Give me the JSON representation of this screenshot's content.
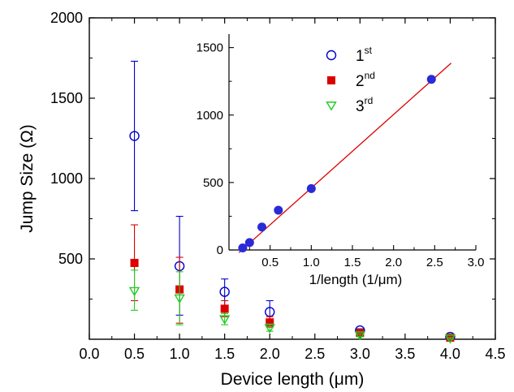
{
  "chart_data": [
    {
      "type": "scatter",
      "xlabel": "Device length (μm)",
      "ylabel": "Jump Size (Ω)",
      "xlim": [
        0,
        4.5
      ],
      "ylim": [
        0,
        2000
      ],
      "xticks": [
        "0.0",
        "0.5",
        "1.0",
        "1.5",
        "2.0",
        "2.5",
        "3.0",
        "3.5",
        "4.0",
        "4.5"
      ],
      "yticks": [
        "500",
        "1000",
        "1500",
        "2000"
      ],
      "grid": false,
      "series": [
        {
          "name": "1st",
          "marker": "open-circle",
          "color": "#0000cc",
          "points": [
            {
              "x": 0.5,
              "y": 1265,
              "err_low": 800,
              "err_high": 1730
            },
            {
              "x": 1.0,
              "y": 455,
              "err_low": 150,
              "err_high": 765
            },
            {
              "x": 1.5,
              "y": 295,
              "err_low": 210,
              "err_high": 375
            },
            {
              "x": 2.0,
              "y": 170,
              "err_low": 100,
              "err_high": 240
            },
            {
              "x": 3.0,
              "y": 55,
              "err_low": 45,
              "err_high": 65
            },
            {
              "x": 4.0,
              "y": 15,
              "err_low": 10,
              "err_high": 20
            }
          ]
        },
        {
          "name": "2nd",
          "marker": "filled-square",
          "color": "#dd0000",
          "points": [
            {
              "x": 0.5,
              "y": 475,
              "err_low": 240,
              "err_high": 712
            },
            {
              "x": 1.0,
              "y": 310,
              "err_low": 100,
              "err_high": 510
            },
            {
              "x": 1.5,
              "y": 190,
              "err_low": 140,
              "err_high": 240
            },
            {
              "x": 2.0,
              "y": 105,
              "err_low": 75,
              "err_high": 140
            },
            {
              "x": 3.0,
              "y": 40,
              "err_low": 30,
              "err_high": 50
            },
            {
              "x": 4.0,
              "y": 10,
              "err_low": 5,
              "err_high": 15
            }
          ]
        },
        {
          "name": "3rd",
          "marker": "open-triangle-down",
          "color": "#22cc22",
          "points": [
            {
              "x": 0.5,
              "y": 300,
              "err_low": 180,
              "err_high": 430
            },
            {
              "x": 1.0,
              "y": 255,
              "err_low": 90,
              "err_high": 420
            },
            {
              "x": 1.5,
              "y": 125,
              "err_low": 90,
              "err_high": 160
            },
            {
              "x": 2.0,
              "y": 70,
              "err_low": 50,
              "err_high": 95
            },
            {
              "x": 3.0,
              "y": 25,
              "err_low": 15,
              "err_high": 35
            },
            {
              "x": 4.0,
              "y": 5,
              "err_low": 0,
              "err_high": 10
            }
          ]
        }
      ]
    },
    {
      "type": "scatter",
      "inset": true,
      "xlabel": "1/length (1/μm)",
      "ylabel": "",
      "xlim": [
        0,
        3.0
      ],
      "ylim": [
        0,
        1600
      ],
      "xticks": [
        "0.5",
        "1.0",
        "1.5",
        "2.0",
        "2.5",
        "3.0"
      ],
      "yticks": [
        "0",
        "500",
        "1000",
        "1500"
      ],
      "legend": {
        "position": "top-center",
        "entries": [
          {
            "base": "1",
            "sup": "st"
          },
          {
            "base": "2",
            "sup": "nd"
          },
          {
            "base": "3",
            "sup": "rd"
          }
        ]
      },
      "series": [
        {
          "name": "1st",
          "marker": "filled-circle",
          "color": "#2a2ad6",
          "points": [
            {
              "x": 0.1667,
              "y": 15
            },
            {
              "x": 0.25,
              "y": 55
            },
            {
              "x": 0.4,
              "y": 170
            },
            {
              "x": 0.6,
              "y": 295
            },
            {
              "x": 1.0,
              "y": 455
            },
            {
              "x": 2.46,
              "y": 1265
            }
          ]
        }
      ],
      "fit_line": {
        "color": "#dd0000",
        "x": [
          0.12,
          2.7
        ],
        "y": [
          -20,
          1385
        ]
      }
    }
  ]
}
